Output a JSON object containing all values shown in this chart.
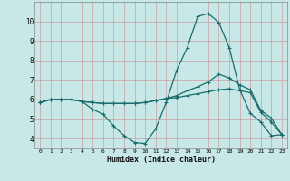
{
  "xlabel": "Humidex (Indice chaleur)",
  "bg_color": "#c8e8e8",
  "grid_color_major": "#c8a0a0",
  "grid_color_minor": "#d8b8b8",
  "line_color": "#1a6b6b",
  "xlim": [
    -0.5,
    23.5
  ],
  "ylim": [
    3.5,
    11.0
  ],
  "yticks": [
    4,
    5,
    6,
    7,
    8,
    9,
    10
  ],
  "xticks": [
    0,
    1,
    2,
    3,
    4,
    5,
    6,
    7,
    8,
    9,
    10,
    11,
    12,
    13,
    14,
    15,
    16,
    17,
    18,
    19,
    20,
    21,
    22,
    23
  ],
  "series1_x": [
    0,
    1,
    2,
    3,
    4,
    5,
    6,
    7,
    8,
    9,
    10,
    11,
    12,
    13,
    14,
    15,
    16,
    17,
    18,
    19,
    20,
    21,
    22,
    23
  ],
  "series1_y": [
    5.85,
    6.0,
    6.0,
    6.0,
    5.9,
    5.5,
    5.25,
    4.65,
    4.15,
    3.8,
    3.75,
    4.5,
    5.85,
    7.5,
    8.65,
    10.25,
    10.4,
    9.95,
    8.65,
    6.5,
    5.3,
    4.85,
    4.15,
    4.2
  ],
  "series2_x": [
    0,
    1,
    2,
    3,
    4,
    5,
    6,
    7,
    8,
    9,
    10,
    11,
    12,
    13,
    14,
    15,
    16,
    17,
    18,
    19,
    20,
    21,
    22,
    23
  ],
  "series2_y": [
    5.85,
    6.0,
    6.0,
    6.0,
    5.9,
    5.85,
    5.8,
    5.8,
    5.8,
    5.8,
    5.85,
    5.95,
    6.05,
    6.2,
    6.45,
    6.65,
    6.9,
    7.3,
    7.1,
    6.75,
    6.5,
    5.45,
    5.05,
    4.2
  ],
  "series3_x": [
    0,
    1,
    2,
    3,
    4,
    5,
    6,
    7,
    8,
    9,
    10,
    11,
    12,
    13,
    14,
    15,
    16,
    17,
    18,
    19,
    20,
    21,
    22,
    23
  ],
  "series3_y": [
    5.85,
    6.0,
    6.0,
    6.0,
    5.9,
    5.85,
    5.8,
    5.8,
    5.8,
    5.8,
    5.85,
    5.95,
    6.05,
    6.1,
    6.2,
    6.3,
    6.4,
    6.5,
    6.55,
    6.45,
    6.35,
    5.35,
    4.85,
    4.2
  ]
}
